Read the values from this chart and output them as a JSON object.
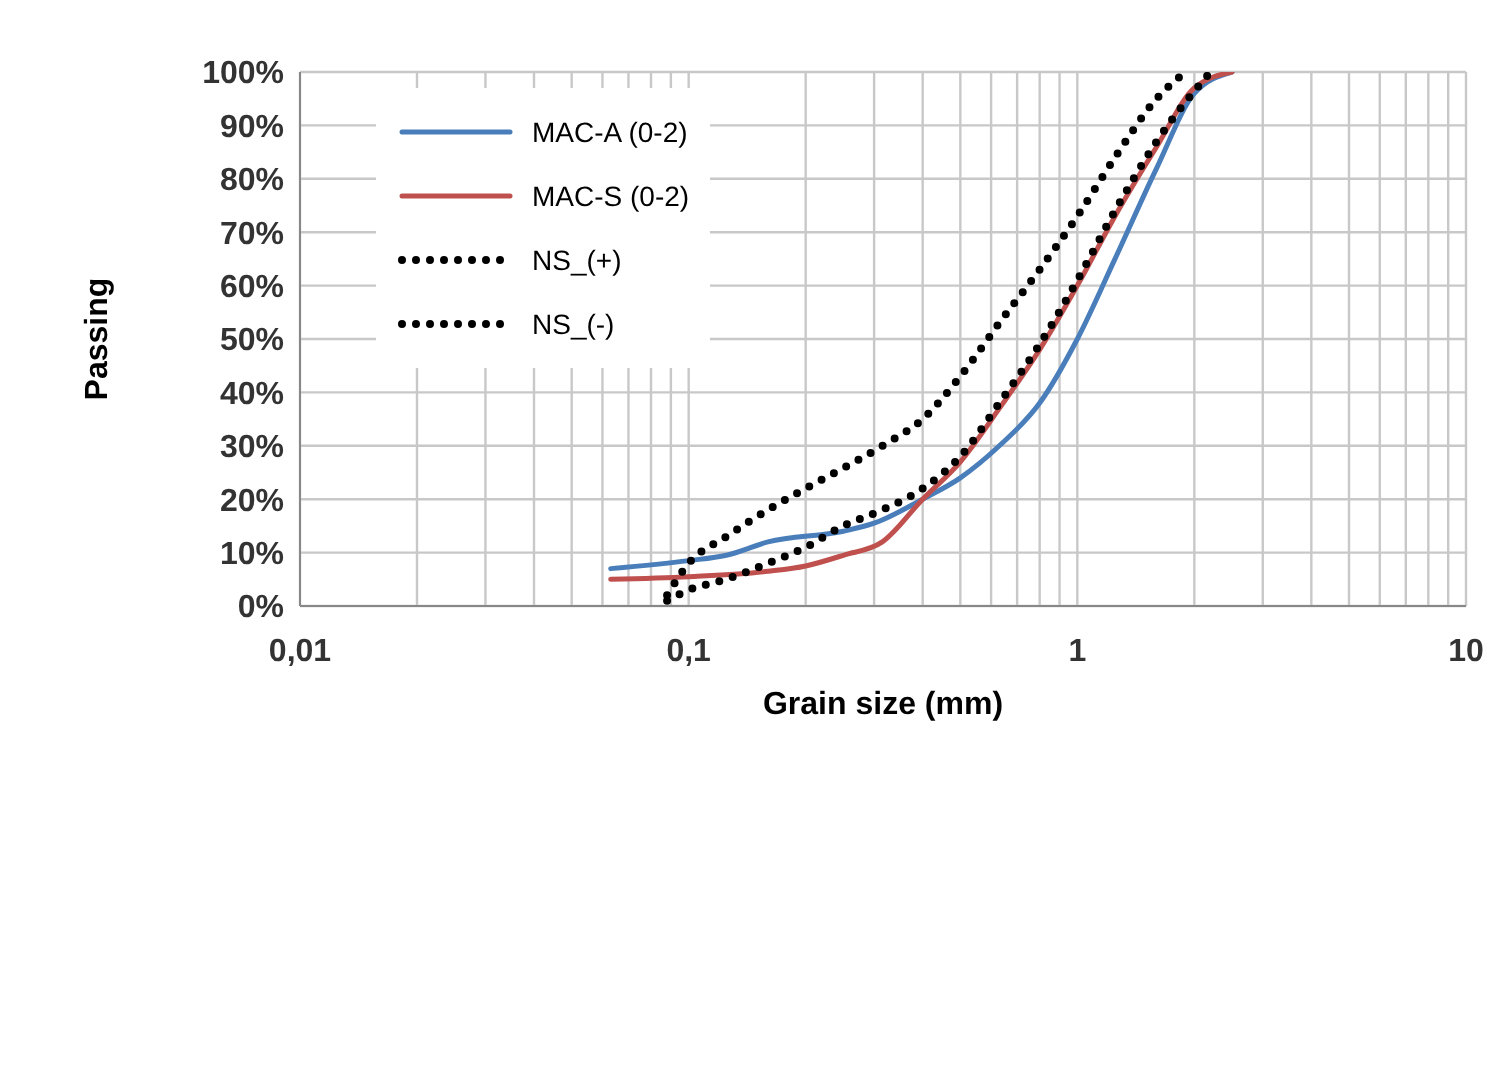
{
  "chart_data": {
    "type": "line",
    "xlabel": "Grain size (mm)",
    "ylabel": "Passing",
    "log": "x",
    "grid": true,
    "legend": "top left",
    "xlim": [
      0.01,
      10
    ],
    "xticks": [
      {
        "value": 0.01,
        "label": "0,01"
      },
      {
        "value": 0.1,
        "label": "0,1"
      },
      1,
      10
    ],
    "ylim": [
      0,
      100
    ],
    "yticks": [
      {
        "value": 0,
        "label": "0%"
      },
      {
        "value": 10,
        "label": "10%"
      },
      {
        "value": 20,
        "label": "20%"
      },
      {
        "value": 30,
        "label": "30%"
      },
      {
        "value": 40,
        "label": "40%"
      },
      {
        "value": 50,
        "label": "50%"
      },
      {
        "value": 60,
        "label": "60%"
      },
      {
        "value": 70,
        "label": "70%"
      },
      {
        "value": 80,
        "label": "80%"
      },
      {
        "value": 90,
        "label": "90%"
      },
      {
        "value": 100,
        "label": "100%"
      }
    ],
    "series": [
      {
        "name": "MAC-A (0-2)",
        "color": "#4a7ebb",
        "line_style": "solid",
        "x": [
          0.063,
          0.1,
          0.125,
          0.16,
          0.25,
          0.3,
          0.4,
          0.5,
          0.63,
          0.8,
          1,
          1.25,
          1.6,
          2,
          2.5
        ],
        "values": [
          7,
          8.5,
          9.5,
          12,
          14,
          15.5,
          20,
          24,
          30,
          38,
          50,
          65,
          82,
          96,
          100
        ]
      },
      {
        "name": "MAC-S (0-2)",
        "color": "#c0504d",
        "line_style": "solid",
        "x": [
          0.063,
          0.1,
          0.16,
          0.2,
          0.25,
          0.315,
          0.4,
          0.5,
          0.63,
          0.8,
          1,
          1.25,
          1.6,
          2,
          2.5
        ],
        "values": [
          5,
          5.5,
          6.5,
          7.5,
          9.5,
          12,
          20,
          27,
          37,
          48,
          60,
          73,
          86,
          97,
          100
        ]
      },
      {
        "name": "NS_(+)",
        "color": "#000000",
        "line_style": "dotted",
        "x": [
          0.088,
          0.1,
          0.125,
          0.16,
          0.2,
          0.315,
          0.4,
          0.5,
          0.63,
          0.8,
          1,
          1.25,
          1.6,
          1.9
        ],
        "values": [
          2,
          8,
          13,
          18,
          22,
          30,
          35,
          43,
          53,
          63,
          73,
          84,
          95,
          100
        ]
      },
      {
        "name": "NS_(-)",
        "color": "#000000",
        "line_style": "dotted",
        "x": [
          0.088,
          0.1,
          0.125,
          0.16,
          0.2,
          0.25,
          0.315,
          0.4,
          0.5,
          0.63,
          0.8,
          1,
          1.25,
          1.6,
          2.2
        ],
        "values": [
          1,
          3,
          5,
          8,
          11,
          15,
          18,
          22,
          28,
          38,
          49,
          61,
          74,
          87,
          100
        ]
      }
    ]
  }
}
